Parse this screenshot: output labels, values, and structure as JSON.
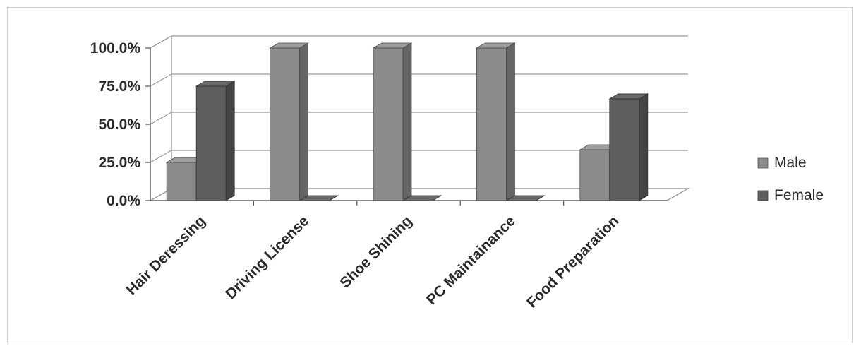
{
  "chart_data": {
    "type": "bar",
    "categories": [
      "Hair Deressing",
      "Driving License",
      "Shoe Shining",
      "PC Maintainance",
      "Food Preparation"
    ],
    "series": [
      {
        "name": "Male",
        "values": [
          25.0,
          100.0,
          100.0,
          100.0,
          33.3
        ],
        "color": "#8c8c8c"
      },
      {
        "name": "Female",
        "values": [
          75.0,
          0.0,
          0.0,
          0.0,
          66.7
        ],
        "color": "#5e5e5e"
      }
    ],
    "yticks": [
      "0.0%",
      "25.0%",
      "50.0%",
      "75.0%",
      "100.0%"
    ],
    "ylim": [
      0,
      100
    ],
    "grid": true,
    "legend_position": "right",
    "bar_style": "3d"
  }
}
